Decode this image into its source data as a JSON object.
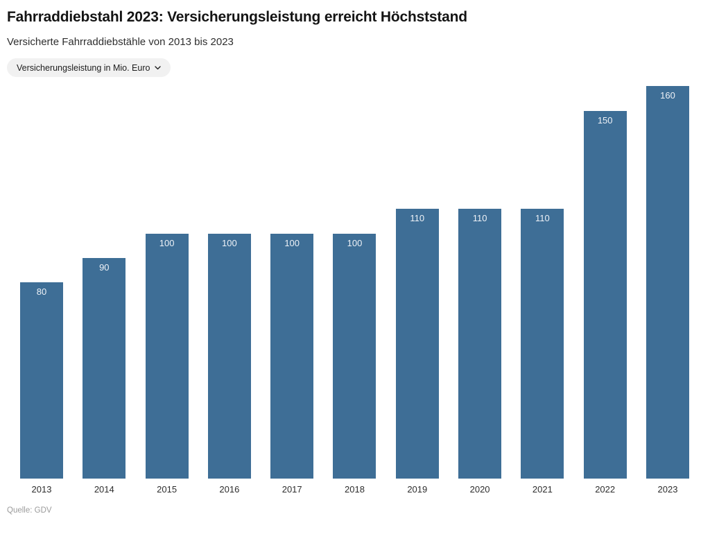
{
  "header": {
    "title": "Fahrraddiebstahl 2023: Versicherungsleistung erreicht Höchststand",
    "subtitle": "Versicherte Fahrraddiebstähle von 2013 bis 2023"
  },
  "filter": {
    "label": "Versicherungsleistung in Mio. Euro",
    "icon": "chevron-down-icon"
  },
  "chart_data": {
    "type": "bar",
    "title": "Fahrraddiebstahl 2023: Versicherungsleistung erreicht Höchststand",
    "subtitle": "Versicherte Fahrraddiebstähle von 2013 bis 2023",
    "categories": [
      "2013",
      "2014",
      "2015",
      "2016",
      "2017",
      "2018",
      "2019",
      "2020",
      "2021",
      "2022",
      "2023"
    ],
    "values": [
      80,
      90,
      100,
      100,
      100,
      100,
      110,
      110,
      110,
      150,
      160
    ],
    "xlabel": "",
    "ylabel": "Versicherungsleistung in Mio. Euro",
    "ylim": [
      0,
      160
    ],
    "grid": false,
    "legend_position": "none",
    "value_labels": "inside-top",
    "bar_color": "#3e6e96",
    "value_label_color": "#eef2f7"
  },
  "footer": {
    "source": "Quelle: GDV"
  }
}
